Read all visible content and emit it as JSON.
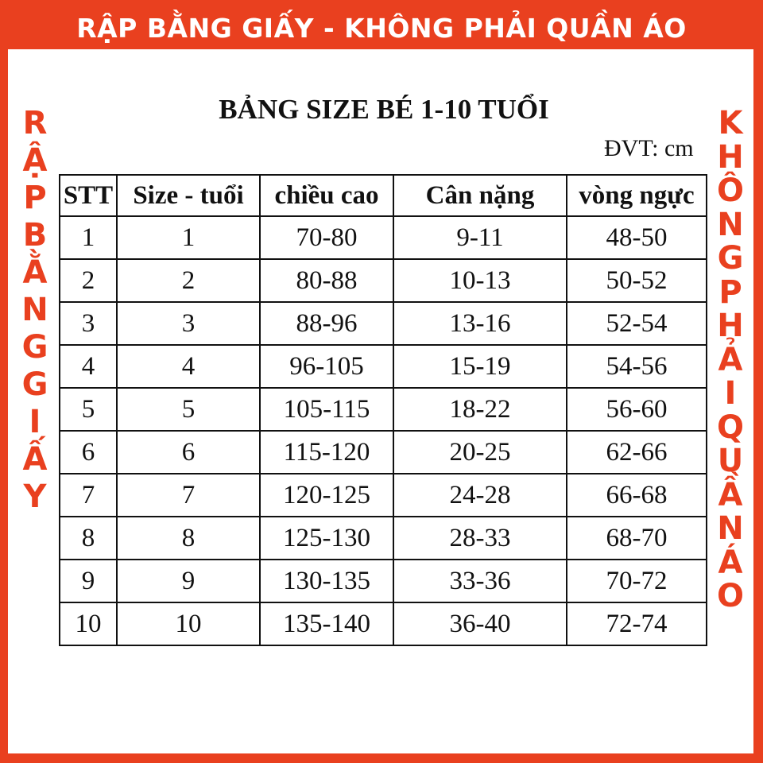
{
  "banner": "RẬP BẰNG GIẤY - KHÔNG PHẢI QUẦN ÁO",
  "title": "BẢNG SIZE BÉ 1-10 TUỔI",
  "unit": "ĐVT: cm",
  "table": {
    "headers": [
      "STT",
      "Size - tuổi",
      "chiều cao",
      "Cân nặng",
      "vòng ngực"
    ],
    "rows": [
      [
        "1",
        "1",
        "70-80",
        "9-11",
        "48-50"
      ],
      [
        "2",
        "2",
        "80-88",
        "10-13",
        "50-52"
      ],
      [
        "3",
        "3",
        "88-96",
        "13-16",
        "52-54"
      ],
      [
        "4",
        "4",
        "96-105",
        "15-19",
        "54-56"
      ],
      [
        "5",
        "5",
        "105-115",
        "18-22",
        "56-60"
      ],
      [
        "6",
        "6",
        "115-120",
        "20-25",
        "62-66"
      ],
      [
        "7",
        "7",
        "120-125",
        "24-28",
        "66-68"
      ],
      [
        "8",
        "8",
        "125-130",
        "28-33",
        "68-70"
      ],
      [
        "9",
        "9",
        "130-135",
        "33-36",
        "70-72"
      ],
      [
        "10",
        "10",
        "135-140",
        "36-40",
        "72-74"
      ]
    ]
  },
  "watermark_left": "RẬP BẰNG GIẤY",
  "watermark_right": "KHÔNG PHẢI QUẦN ÁO",
  "colors": {
    "brand": "#e9401f"
  }
}
